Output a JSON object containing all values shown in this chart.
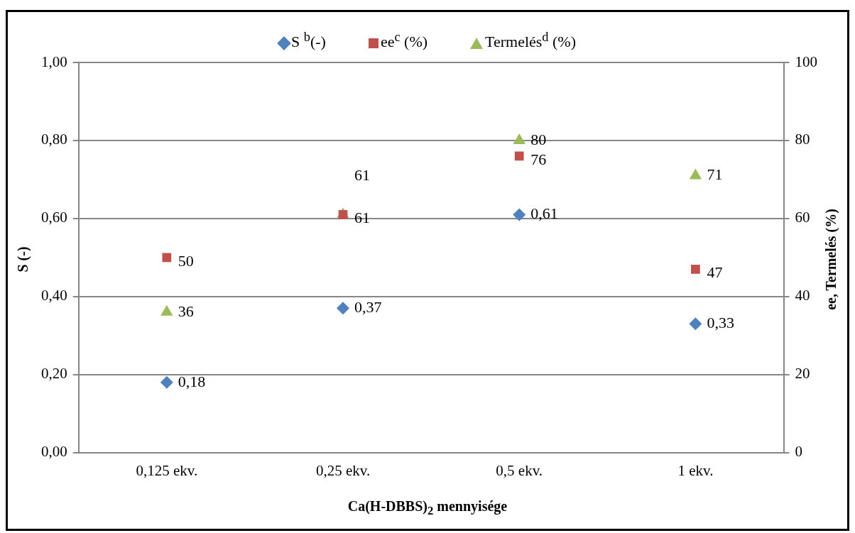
{
  "chart_data": {
    "type": "scatter",
    "categories": [
      "0,125 ekv.",
      "0,25 ekv.",
      "0,5 ekv.",
      "1 ekv."
    ],
    "series": [
      {
        "name": "S $^{b}$(-)",
        "color": "#4f81bd",
        "marker": "diamond",
        "values": [
          0.18,
          0.37,
          0.61,
          0.33
        ],
        "value_labels": [
          "0,18",
          "0,37",
          "0,61",
          "0,33"
        ]
      },
      {
        "name": "ee$^{c}$ (%)",
        "color": "#c0504d",
        "marker": "square",
        "axis": "y2",
        "values": [
          50,
          61,
          76,
          47
        ],
        "value_labels": [
          "50",
          "61",
          "76",
          "47"
        ]
      },
      {
        "name": "Termelés$^{d}$ (%)",
        "color": "#9bbb59",
        "marker": "triangle",
        "axis": "y2",
        "values": [
          36,
          61,
          80,
          71
        ],
        "value_labels": [
          "36",
          "61",
          "80",
          "71"
        ]
      }
    ],
    "xlabel": "Ca(H-DBBS)$_{2}$ mennyisége",
    "ylabel": "S (-)",
    "y2label": "ee, Termelés (%)",
    "ylim": [
      0,
      1
    ],
    "yticks": [
      {
        "value": 0,
        "label": "0,00"
      },
      {
        "value": 0.2,
        "label": "0,20"
      },
      {
        "value": 0.4,
        "label": "0,40"
      },
      {
        "value": 0.6,
        "label": "0,60"
      },
      {
        "value": 0.8,
        "label": "0,80"
      },
      {
        "value": 1,
        "label": "1,00"
      }
    ],
    "y2lim": [
      0,
      100
    ],
    "y2ticks": [
      0,
      20,
      40,
      60,
      80,
      100
    ],
    "grid": "y",
    "legend": "top"
  }
}
